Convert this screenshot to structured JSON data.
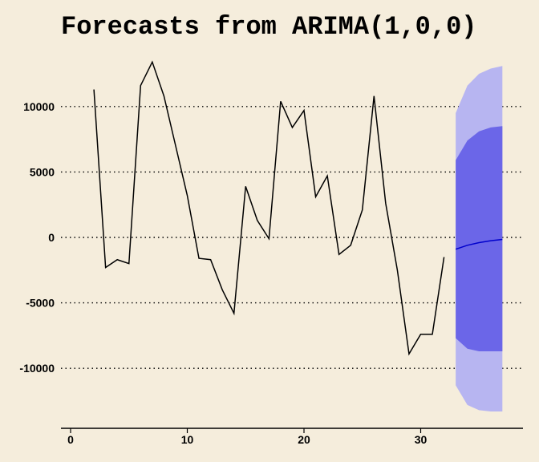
{
  "chart_data": {
    "type": "line",
    "title": "Forecasts from ARIMA(1,0,0)",
    "xlabel": "",
    "ylabel": "",
    "xlim": [
      0,
      38
    ],
    "ylim": [
      -14000,
      14000
    ],
    "x_ticks": [
      0,
      10,
      20,
      30
    ],
    "x_tick_labels": [
      "0",
      "10",
      "20",
      "30"
    ],
    "y_ticks": [
      10000,
      5000,
      0,
      -5000,
      -10000
    ],
    "y_tick_labels": [
      "10000",
      "5000",
      "0",
      "-5000",
      "-10000"
    ],
    "grid": "horizontal dotted at y ticks",
    "series": [
      {
        "x": [
          2,
          3,
          4,
          5,
          6,
          7,
          8,
          9,
          10,
          11,
          12,
          13,
          14,
          15,
          16,
          17,
          18,
          19,
          20,
          21,
          22,
          23,
          24,
          25,
          26,
          27,
          28,
          29,
          30,
          31,
          32
        ],
        "values": [
          11300,
          -2300,
          -1700,
          -2000,
          11600,
          13400,
          10800,
          7000,
          3200,
          -1600,
          -1700,
          -4000,
          -5800,
          3900,
          1300,
          -100,
          10400,
          8400,
          9700,
          3100,
          4700,
          -1300,
          -600,
          2100,
          10800,
          2600,
          -2500,
          -8900,
          -7400,
          -7400,
          -1500
        ],
        "color": "#000000"
      }
    ],
    "forecast": {
      "x": [
        33,
        34,
        35,
        36,
        37
      ],
      "mean": [
        -900,
        -600,
        -400,
        -250,
        -150
      ],
      "lo80": [
        -7700,
        -8500,
        -8700,
        -8700,
        -8700
      ],
      "hi80": [
        5900,
        7400,
        8100,
        8400,
        8500
      ],
      "lo95": [
        -11300,
        -12800,
        -13200,
        -13300,
        -13300
      ],
      "hi95": [
        9500,
        11600,
        12500,
        12900,
        13100
      ],
      "colors": {
        "mean": "#0000cc",
        "band80": "#6b66e8",
        "band95": "#b7b5f1"
      }
    }
  }
}
